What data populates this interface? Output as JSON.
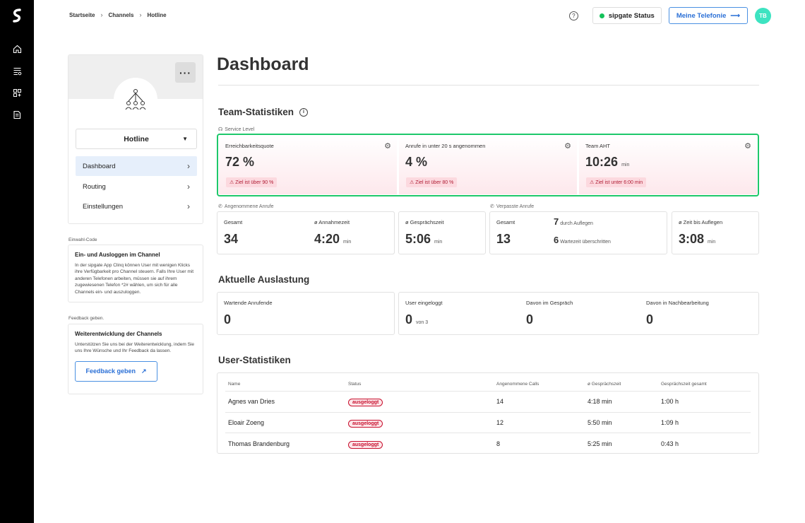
{
  "breadcrumb": [
    "Startseite",
    "Channels",
    "Hotline"
  ],
  "status": {
    "label": "sipgate Status",
    "color": "#14c25a"
  },
  "tel_button": "Meine Telefonie",
  "avatar": "TB",
  "channel": {
    "name": "Hotline",
    "nav": [
      {
        "label": "Dashboard",
        "active": true
      },
      {
        "label": "Routing"
      },
      {
        "label": "Einstellungen"
      }
    ]
  },
  "einwahl": {
    "section": "Einwahl-Code",
    "title": "Ein- und Ausloggen im Channel",
    "text": "In der sipgate App Clinq können User mit wenigen Klicks ihre Verfügbarkeit pro Channel steuern. Falls Ihre User mit anderen Telefonen arbeiten, müssen sie auf ihrem zugewiesenen Telefon *2# wählen, um sich für alle Channels ein- und auszuloggen."
  },
  "feedback": {
    "section": "Feedback geben.",
    "title": "Weiterentwicklung der Channels",
    "text": "Unterstützen Sie uns bei der Weiterentwicklung, indem Sie uns Ihre Wünsche und Ihr Feedback da lassen.",
    "button": "Feedback geben"
  },
  "page_title": "Dashboard",
  "team": {
    "title": "Team-Statistiken",
    "service_level": "Service Level",
    "cards": [
      {
        "title": "Erreichbarkeitsquote",
        "value": "72 %",
        "unit": "",
        "warn": "Ziel ist über 90 %"
      },
      {
        "title": "Anrufe in unter 20 s angenommen",
        "value": "4 %",
        "unit": "",
        "warn": "Ziel ist über 80 %"
      },
      {
        "title": "Team AHT",
        "value": "10:26",
        "unit": "min",
        "warn": "Ziel ist unter 6:00 min"
      }
    ],
    "accepted_label": "Angenommene Anrufe",
    "accepted": [
      {
        "title": "Gesamt",
        "value": "34",
        "unit": ""
      },
      {
        "title": "ø Annahmezeit",
        "value": "4:20",
        "unit": "min"
      },
      {
        "title": "ø Gesprächszeit",
        "value": "5:06",
        "unit": "min"
      }
    ],
    "missed_label": "Verpasste Anrufe",
    "missed": {
      "title": "Gesamt",
      "value": "13",
      "hangup_count": "7",
      "hangup_label": "durch Auflegen",
      "wait_count": "6",
      "wait_label": "Wartezeit überschritten"
    },
    "hangup_time": {
      "title": "ø Zeit bis Auflegen",
      "value": "3:08",
      "unit": "min"
    }
  },
  "load": {
    "title": "Aktuelle Auslastung",
    "waiting": {
      "title": "Wartende Anrufende",
      "value": "0"
    },
    "logged": {
      "title": "User eingeloggt",
      "value": "0",
      "of": "von 3"
    },
    "talking": {
      "title": "Davon im Gespräch",
      "value": "0"
    },
    "post": {
      "title": "Davon in Nachbearbeitung",
      "value": "0"
    }
  },
  "users": {
    "title": "User-Statistiken",
    "headers": [
      "Name",
      "Status",
      "Angenommene Calls",
      "ø Gesprächszeit",
      "Gesprächszeit gesamt"
    ],
    "rows": [
      [
        "Agnes van Dries",
        "ausgeloggt",
        "14",
        "4:18 min",
        "1:00 h"
      ],
      [
        "Eloair Zoeng",
        "ausgeloggt",
        "12",
        "5:50 min",
        "1:09 h"
      ],
      [
        "Thomas Brandenburg",
        "ausgeloggt",
        "8",
        "5:25 min",
        "0:43 h"
      ]
    ]
  }
}
